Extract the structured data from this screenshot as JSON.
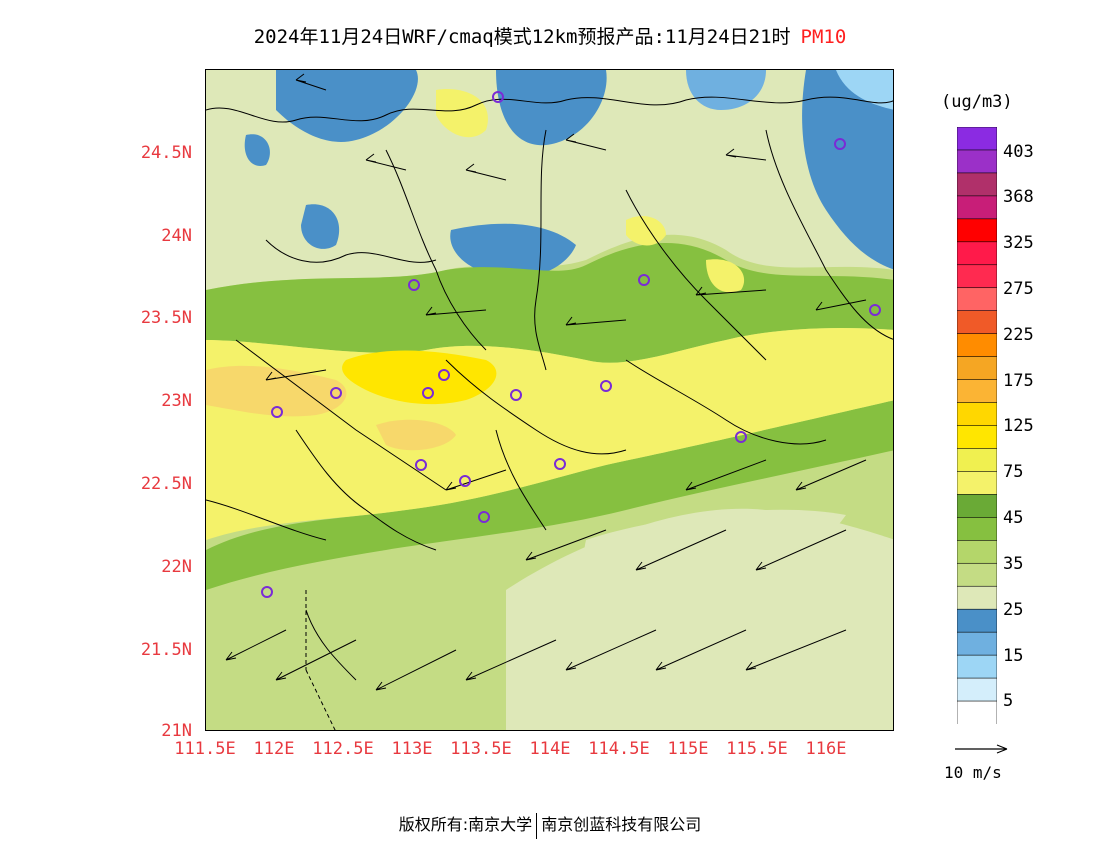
{
  "title": {
    "main": "2024年11月24日WRF/cmaq模式12km预报产品:11月24日21时",
    "pollutant": "PM10"
  },
  "axes": {
    "y_ticks": [
      "24.5N",
      "24N",
      "23.5N",
      "23N",
      "22.5N",
      "22N",
      "21.5N",
      "21N"
    ],
    "x_ticks": [
      "111.5E",
      "112E",
      "112.5E",
      "113E",
      "113.5E",
      "114E",
      "114.5E",
      "115E",
      "115.5E",
      "116E"
    ]
  },
  "colorbar": {
    "unit": "(ug/m3)",
    "labels": [
      "403",
      "368",
      "325",
      "275",
      "225",
      "175",
      "125",
      "75",
      "45",
      "35",
      "25",
      "15",
      "5"
    ],
    "colors": [
      "#8b2be2",
      "#9b30c8",
      "#b0306a",
      "#c81e78",
      "#ff0000",
      "#ff1a4a",
      "#ff2a50",
      "#ff6464",
      "#f05a28",
      "#ff8c00",
      "#f5a623",
      "#fbb434",
      "#ffd700",
      "#ffe600",
      "#f0f050",
      "#f4f26a",
      "#6aaa36",
      "#86c040",
      "#b4d66a",
      "#c4dc84",
      "#dee8b8",
      "#4a90c8",
      "#6fb0e0",
      "#9dd6f5",
      "#d4eefb",
      "#ffffff"
    ]
  },
  "wind": {
    "legend_label": "10 m/s"
  },
  "stations_label": "monitoring-station-icon",
  "copyright": {
    "left": "版权所有:南京大学",
    "right": "南京创蓝科技有限公司"
  },
  "map_colors": {
    "blue": "#4a90c8",
    "light_blue": "#6fb0e0",
    "pale_green": "#dee8b8",
    "green_35": "#c4dc84",
    "green_45": "#86c040",
    "dark_green": "#6aaa36",
    "yellow_75": "#f4f26a",
    "yellow_125": "#ffe600",
    "orange": "#f5a623"
  }
}
